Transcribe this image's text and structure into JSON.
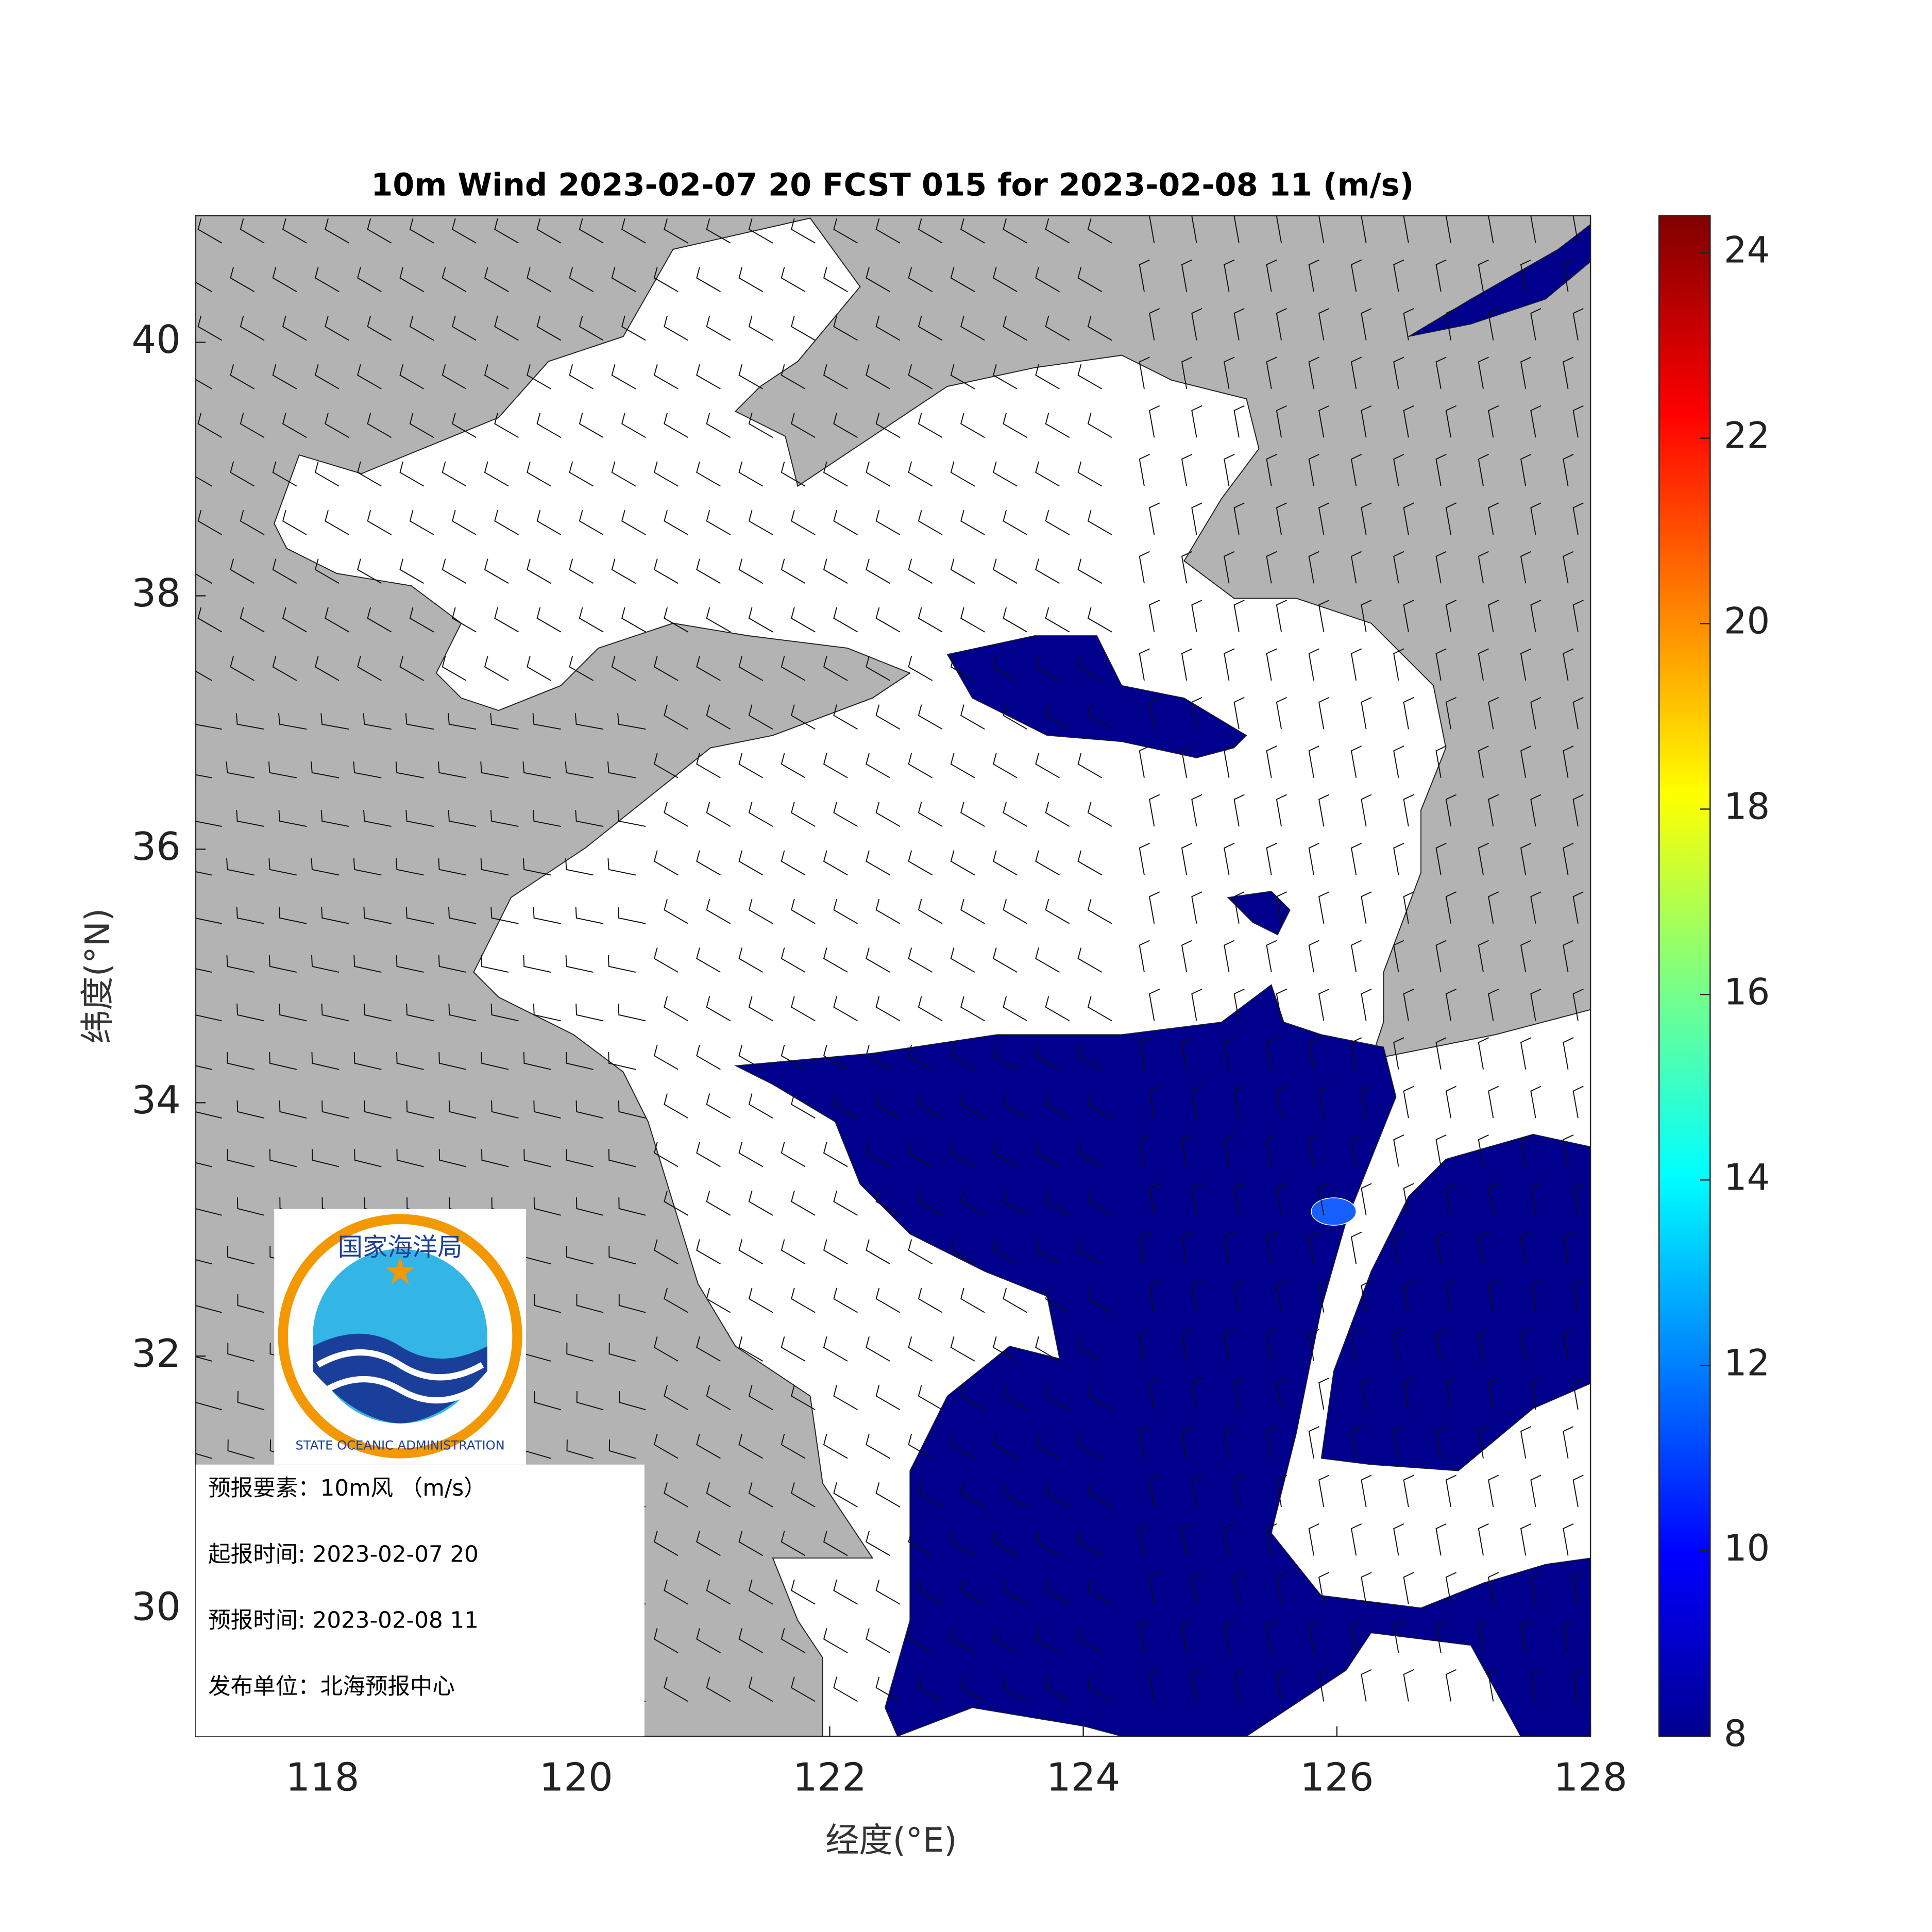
{
  "map": {
    "title": "10m Wind 2023-02-07 20 FCST 015 for 2023-02-08 11 (m/s)",
    "xlabel": "经度(°E)",
    "ylabel": "纬度(°N)",
    "xlim": [
      117,
      128
    ],
    "ylim": [
      29,
      41
    ],
    "xticks": [
      118,
      120,
      122,
      124,
      126,
      128
    ],
    "yticks": [
      30,
      32,
      34,
      36,
      38,
      40
    ]
  },
  "colorbar": {
    "lim": [
      8,
      24.4
    ],
    "ticks": [
      8,
      10,
      12,
      14,
      16,
      18,
      20,
      22,
      24
    ]
  },
  "logo": {
    "cn": "国家海洋局",
    "en": "STATE OCEANIC ADMINISTRATION"
  },
  "info": [
    "预报要素：10m风 （m/s）",
    "起报时间: 2023-02-07 20",
    "预报时间: 2023-02-08 11",
    "发布单位：北海预报中心"
  ]
}
